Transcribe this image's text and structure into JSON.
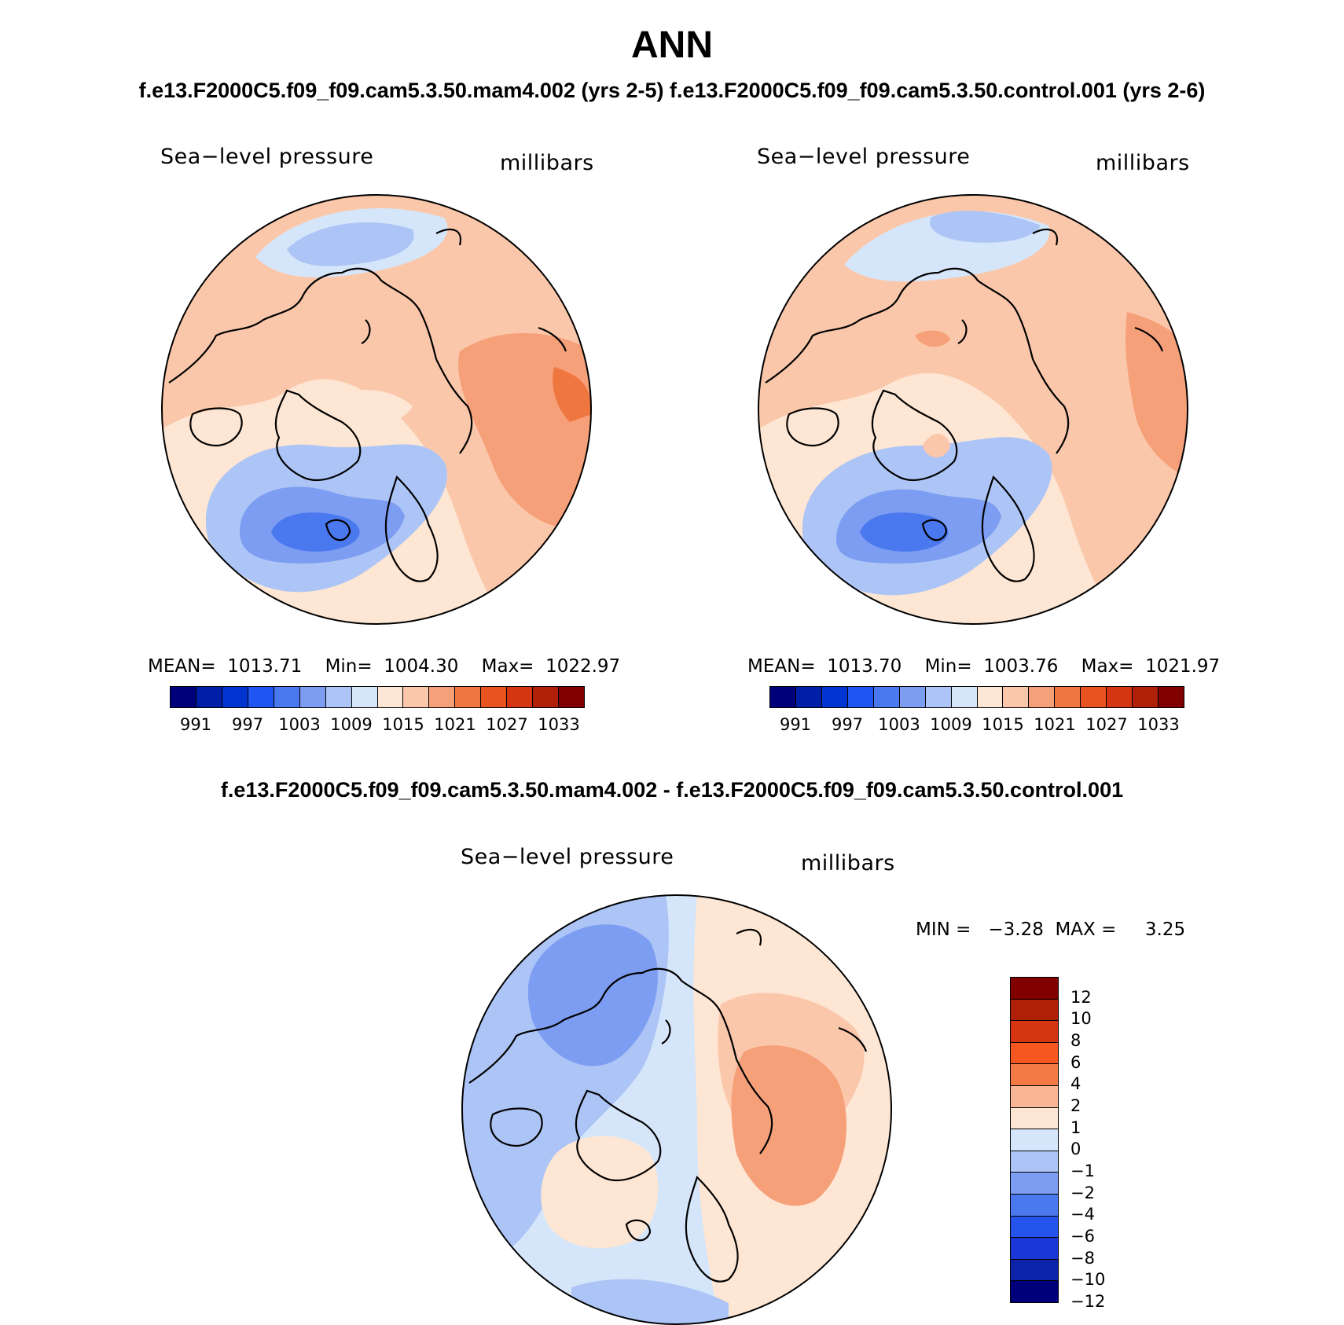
{
  "page": {
    "title": "ANN",
    "subtitle": "f.e13.F2000C5.f09_f09.cam5.3.50.mam4.002 (yrs 2-5) f.e13.F2000C5.f09_f09.cam5.3.50.control.001 (yrs 2-6)",
    "diff_title": "f.e13.F2000C5.f09_f09.cam5.3.50.mam4.002 - f.e13.F2000C5.f09_f09.cam5.3.50.control.001"
  },
  "panels": {
    "left": {
      "variable": "Sea−level pressure",
      "units": "millibars",
      "stats": "MEAN=  1013.71    Min=  1004.30    Max=  1022.97"
    },
    "right": {
      "variable": "Sea−level pressure",
      "units": "millibars",
      "stats": "MEAN=  1013.70    Min=  1003.76    Max=  1021.97"
    },
    "diff": {
      "variable": "Sea−level pressure",
      "units": "millibars",
      "stats": "MIN =   −3.28  MAX =     3.25"
    }
  },
  "colorbars": {
    "abs": {
      "colors": [
        "#00007a",
        "#001fa8",
        "#0035d2",
        "#1f55f0",
        "#4a78ee",
        "#7d9df2",
        "#adc5f6",
        "#d6e6fa",
        "#fde6d3",
        "#fbc7aa",
        "#f6a07a",
        "#f0763f",
        "#e9531f",
        "#d53511",
        "#b01f08",
        "#800000"
      ],
      "labels": [
        "991",
        "997",
        "1003",
        "1009",
        "1015",
        "1021",
        "1027",
        "1033"
      ]
    },
    "diff": {
      "colors": [
        "#800000",
        "#b01f08",
        "#d53511",
        "#f6561f",
        "#f47a45",
        "#f8b694",
        "#fde6d3",
        "#d6e6fa",
        "#adc5f6",
        "#7d9df2",
        "#4a78ee",
        "#2454ec",
        "#1a38d8",
        "#0c22a8",
        "#00007a"
      ],
      "labels": [
        "12",
        "10",
        "8",
        "6",
        "4",
        "2",
        "1",
        "0",
        "−1",
        "−2",
        "−4",
        "−6",
        "−8",
        "−10",
        "−12"
      ]
    }
  }
}
